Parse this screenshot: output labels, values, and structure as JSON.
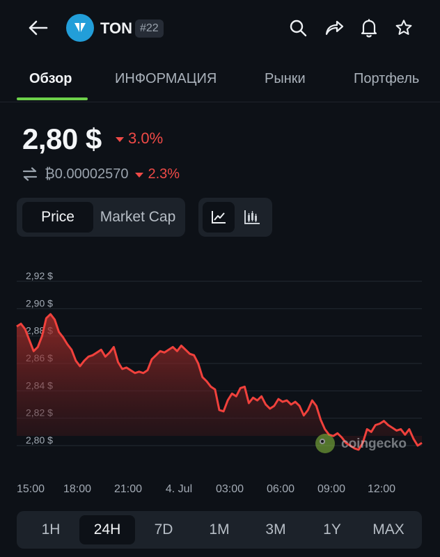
{
  "header": {
    "coin_symbol": "TON",
    "rank": "#22",
    "icons": [
      "back-arrow-icon",
      "search-icon",
      "share-icon",
      "bell-icon",
      "star-icon"
    ]
  },
  "tabs": [
    {
      "label": "Обзор",
      "active": true
    },
    {
      "label": "ИНФОРМАЦИЯ",
      "active": false
    },
    {
      "label": "Рынки",
      "active": false
    },
    {
      "label": "Портфель",
      "active": false
    }
  ],
  "price": {
    "value": "2,80 $",
    "change": "3.0%",
    "btc_value": "₿0.00002570",
    "btc_change": "2.3%",
    "change_color": "#f04a47"
  },
  "chart_mode": {
    "options": [
      "Price",
      "Market Cap"
    ],
    "selected": "Price",
    "view_icons": [
      "line-chart-icon",
      "candlestick-chart-icon"
    ],
    "selected_view": "line-chart-icon"
  },
  "chart_data": {
    "type": "area",
    "y_ticks": [
      "2,92 $",
      "2,90 $",
      "2,88 $",
      "2,86 $",
      "2,84 $",
      "2,82 $",
      "2,80 $"
    ],
    "ylim": [
      2.795,
      2.92
    ],
    "x_ticks": [
      "15:00",
      "18:00",
      "21:00",
      "4. Jul",
      "03:00",
      "06:00",
      "09:00",
      "12:00"
    ],
    "series": [
      {
        "values": [
          2.887,
          2.889,
          2.885,
          2.877,
          2.869,
          2.872,
          2.88,
          2.893,
          2.896,
          2.892,
          2.883,
          2.879,
          2.874,
          2.87,
          2.862,
          2.858,
          2.862,
          2.865,
          2.866,
          2.868,
          2.87,
          2.865,
          2.868,
          2.872,
          2.861,
          2.856,
          2.857,
          2.855,
          2.853,
          2.854,
          2.853,
          2.855,
          2.863,
          2.866,
          2.869,
          2.868,
          2.87,
          2.872,
          2.869,
          2.873,
          2.87,
          2.867,
          2.866,
          2.86,
          2.85,
          2.847,
          2.843,
          2.841,
          2.826,
          2.825,
          2.833,
          2.838,
          2.836,
          2.842,
          2.843,
          2.831,
          2.835,
          2.833,
          2.836,
          2.83,
          2.827,
          2.829,
          2.834,
          2.832,
          2.833,
          2.83,
          2.832,
          2.829,
          2.822,
          2.826,
          2.833,
          2.829,
          2.819,
          2.812,
          2.808,
          2.807,
          2.809,
          2.806,
          2.802,
          2.8,
          2.798,
          2.797,
          2.802,
          2.812,
          2.81,
          2.815,
          2.816,
          2.818,
          2.815,
          2.813,
          2.811,
          2.812,
          2.808,
          2.812,
          2.805,
          2.8,
          2.802
        ]
      }
    ],
    "line_color": "#f0413c",
    "grid": true
  },
  "watermark": "coingecko",
  "time_range": {
    "options": [
      "1H",
      "24H",
      "7D",
      "1M",
      "3M",
      "1Y",
      "MAX"
    ],
    "selected": "24H"
  }
}
